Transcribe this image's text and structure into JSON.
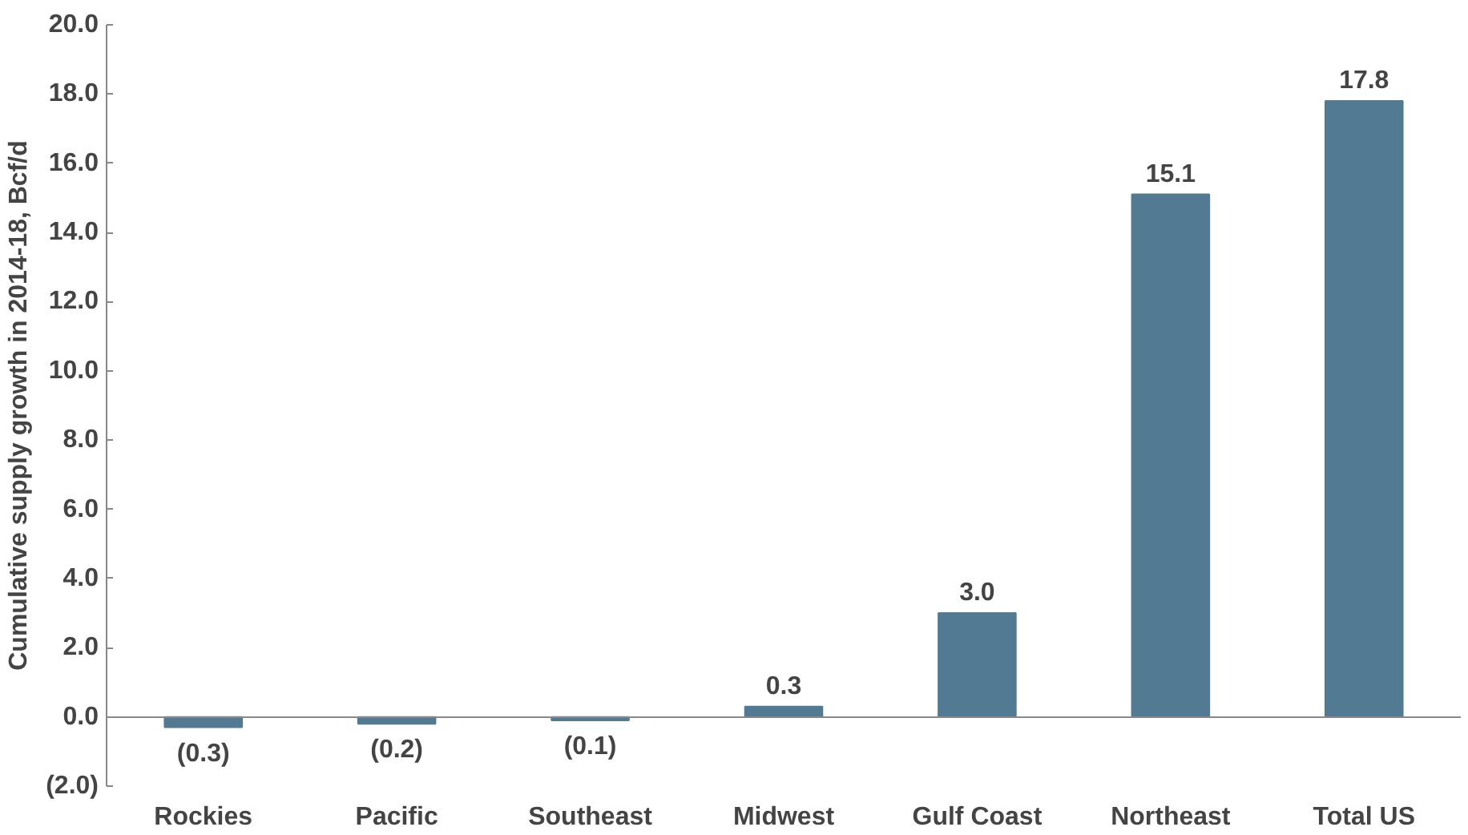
{
  "chart_data": {
    "type": "bar",
    "ylabel": "Cumulative supply growth in 2014-18, Bcf/d",
    "categories": [
      "Rockies",
      "Pacific",
      "Southeast",
      "Midwest",
      "Gulf Coast",
      "Northeast",
      "Total US"
    ],
    "values": [
      -0.3,
      -0.2,
      -0.1,
      0.3,
      3.0,
      15.1,
      17.8
    ],
    "value_labels": [
      "(0.3)",
      "(0.2)",
      "(0.1)",
      "0.3",
      "3.0",
      "15.1",
      "17.8"
    ],
    "color": "#537a93",
    "ylim": [
      -2,
      20
    ],
    "yticks": [
      {
        "value": -2,
        "label": "(2.0)"
      },
      {
        "value": 0,
        "label": "0.0"
      },
      {
        "value": 2,
        "label": "2.0"
      },
      {
        "value": 4,
        "label": "4.0"
      },
      {
        "value": 6,
        "label": "6.0"
      },
      {
        "value": 8,
        "label": "8.0"
      },
      {
        "value": 10,
        "label": "10.0"
      },
      {
        "value": 12,
        "label": "12.0"
      },
      {
        "value": 14,
        "label": "14.0"
      },
      {
        "value": 16,
        "label": "16.0"
      },
      {
        "value": 18,
        "label": "18.0"
      },
      {
        "value": 20,
        "label": "20.0"
      }
    ]
  }
}
